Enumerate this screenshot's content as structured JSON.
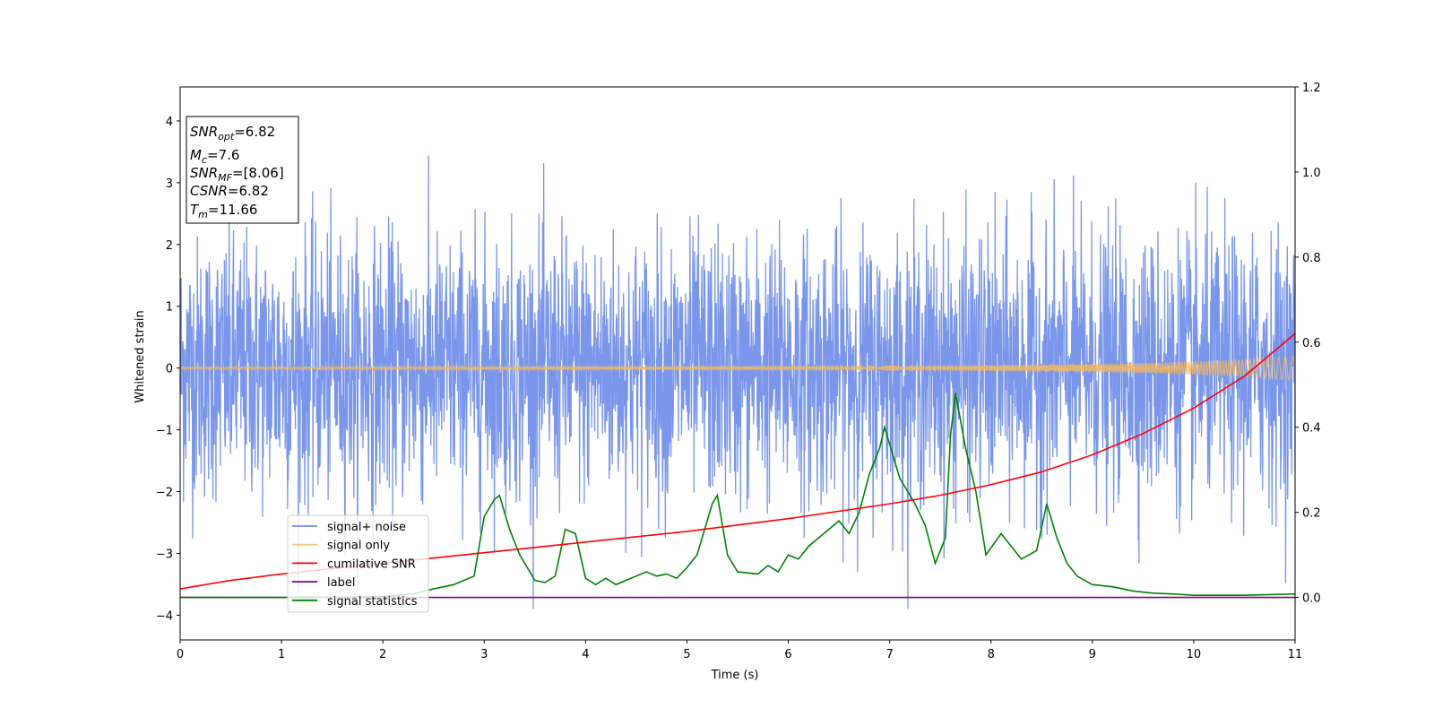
{
  "chart_data": {
    "type": "line",
    "xlabel": "Time (s)",
    "ylabel": "Whitened strain",
    "xlim": [
      0,
      11
    ],
    "ylim_left": [
      -4.4,
      4.55
    ],
    "ylim_right": [
      -0.1,
      1.2
    ],
    "x_ticks": [
      0,
      1,
      2,
      3,
      4,
      5,
      6,
      7,
      8,
      9,
      10,
      11
    ],
    "x_tick_labels": [
      "0",
      "1",
      "2",
      "3",
      "4",
      "5",
      "6",
      "7",
      "8",
      "9",
      "10",
      "11"
    ],
    "y_ticks_left": [
      4,
      3,
      2,
      1,
      0,
      -1,
      -2,
      -3,
      -4
    ],
    "y_tick_labels_left": [
      "4",
      "3",
      "2",
      "1",
      "0",
      "−1",
      "−2",
      "−3",
      "−4"
    ],
    "y_ticks_right": [
      1.2,
      1.0,
      0.8,
      0.6,
      0.4,
      0.2,
      0.0
    ],
    "y_tick_labels_right": [
      "1.2",
      "1.0",
      "0.8",
      "0.6",
      "0.4",
      "0.2",
      "0.0"
    ],
    "info_box": [
      {
        "base": "SNR",
        "sub": "opt",
        "value": "=6.82"
      },
      {
        "base": "M",
        "sub": "c",
        "value": "=7.6"
      },
      {
        "base": "SNR",
        "sub": "MF",
        "value": "=[8.06]"
      },
      {
        "base": "CSNR",
        "sub": "",
        "value": "=6.82"
      },
      {
        "base": "T",
        "sub": "m",
        "value": "=11.66"
      }
    ],
    "legend": {
      "placement": "lower-left",
      "entries": [
        {
          "label": "signal+ noise",
          "color": "#4169e1"
        },
        {
          "label": "signal only",
          "color": "#f4b860"
        },
        {
          "label": "cumilative SNR",
          "color": "#ff0000"
        },
        {
          "label": "label",
          "color": "#800080"
        },
        {
          "label": "signal statistics",
          "color": "#008000"
        }
      ]
    },
    "series": [
      {
        "name": "signal+ noise",
        "axis": "left",
        "color": "#4169e1",
        "note_values": "dense noise, roughly within [-3.5, 4.2]"
      },
      {
        "name": "signal only",
        "axis": "left",
        "color": "#f4b860",
        "envelope": [
          [
            0,
            0.02
          ],
          [
            5,
            0.03
          ],
          [
            8,
            0.05
          ],
          [
            9.5,
            0.08
          ],
          [
            10.5,
            0.14
          ],
          [
            11,
            0.2
          ]
        ]
      },
      {
        "name": "cumilative SNR",
        "axis": "right",
        "color": "#ff0000",
        "x": [
          0,
          0.5,
          1,
          2,
          3,
          4,
          5,
          6,
          7,
          7.5,
          8,
          8.5,
          9,
          9.5,
          10,
          10.5,
          10.8,
          11
        ],
        "values": [
          0.02,
          0.04,
          0.055,
          0.08,
          0.105,
          0.13,
          0.155,
          0.185,
          0.22,
          0.24,
          0.265,
          0.295,
          0.335,
          0.385,
          0.445,
          0.52,
          0.58,
          0.62
        ]
      },
      {
        "name": "label",
        "axis": "right",
        "color": "#800080",
        "x": [
          0,
          11
        ],
        "values": [
          0.0,
          0.0
        ]
      },
      {
        "name": "signal statistics",
        "axis": "right",
        "color": "#008000",
        "x": [
          0,
          1.5,
          2.0,
          2.3,
          2.5,
          2.7,
          2.9,
          3.0,
          3.1,
          3.15,
          3.25,
          3.35,
          3.5,
          3.6,
          3.7,
          3.8,
          3.9,
          4.0,
          4.1,
          4.2,
          4.3,
          4.4,
          4.6,
          4.7,
          4.8,
          4.9,
          5.0,
          5.1,
          5.25,
          5.3,
          5.4,
          5.5,
          5.7,
          5.8,
          5.9,
          6.0,
          6.1,
          6.2,
          6.4,
          6.5,
          6.6,
          6.7,
          6.8,
          6.9,
          6.95,
          7.0,
          7.1,
          7.25,
          7.35,
          7.45,
          7.55,
          7.6,
          7.65,
          7.75,
          7.85,
          7.95,
          8.1,
          8.2,
          8.3,
          8.45,
          8.55,
          8.65,
          8.75,
          8.85,
          9.0,
          9.2,
          9.4,
          9.6,
          9.8,
          10.0,
          10.5,
          11.0
        ],
        "values": [
          0.0,
          0.0,
          0.002,
          0.008,
          0.02,
          0.03,
          0.05,
          0.19,
          0.23,
          0.24,
          0.16,
          0.1,
          0.04,
          0.035,
          0.05,
          0.16,
          0.15,
          0.045,
          0.03,
          0.045,
          0.03,
          0.04,
          0.06,
          0.05,
          0.055,
          0.045,
          0.07,
          0.1,
          0.22,
          0.24,
          0.1,
          0.06,
          0.055,
          0.075,
          0.06,
          0.1,
          0.09,
          0.12,
          0.16,
          0.18,
          0.15,
          0.2,
          0.29,
          0.35,
          0.4,
          0.36,
          0.28,
          0.22,
          0.17,
          0.08,
          0.14,
          0.38,
          0.48,
          0.35,
          0.25,
          0.1,
          0.15,
          0.12,
          0.09,
          0.11,
          0.22,
          0.14,
          0.08,
          0.05,
          0.03,
          0.025,
          0.015,
          0.01,
          0.008,
          0.005,
          0.005,
          0.008
        ]
      }
    ]
  }
}
